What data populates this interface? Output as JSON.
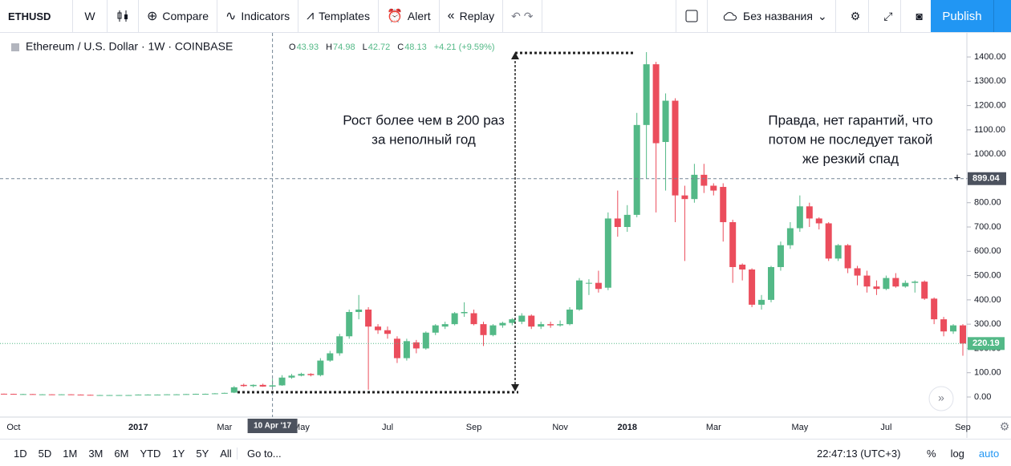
{
  "toolbar": {
    "symbol": "ETHUSD",
    "interval": "W",
    "items": [
      "Compare",
      "Indicators",
      "Templates",
      "Alert",
      "Replay"
    ],
    "layout_name": "Без названия",
    "publish": "Publish"
  },
  "chart_data": {
    "type": "candlestick",
    "header": {
      "title": "Ethereum / U.S. Dollar · 1W · COINBASE",
      "ohlc": [
        {
          "label": "O",
          "value": "43.93"
        },
        {
          "label": "H",
          "value": "74.98"
        },
        {
          "label": "L",
          "value": "42.72"
        },
        {
          "label": "C",
          "value": "48.13"
        }
      ],
      "change": "+4.21 (+9.59%)"
    },
    "annotations": [
      {
        "lines": [
          "Рост более чем в 200 раз",
          "за неполный год"
        ]
      },
      {
        "lines": [
          "Правда, нет гарантий, что",
          "потом не последует такой",
          "же резкий спад"
        ]
      }
    ],
    "up_color": "#53b987",
    "down_color": "#eb4d5c",
    "categories": [
      null,
      "Oct",
      null,
      null,
      null,
      null,
      null,
      null,
      null,
      null,
      null,
      null,
      null,
      null,
      "2017",
      null,
      null,
      null,
      null,
      null,
      null,
      null,
      null,
      "Mar",
      null,
      null,
      null,
      null,
      null,
      null,
      null,
      "May",
      null,
      null,
      null,
      null,
      null,
      null,
      null,
      null,
      "Jul",
      null,
      null,
      null,
      null,
      null,
      null,
      null,
      null,
      "Sep",
      null,
      null,
      null,
      null,
      null,
      null,
      null,
      null,
      "Nov",
      null,
      null,
      null,
      null,
      null,
      null,
      "2018",
      null,
      null,
      null,
      null,
      null,
      null,
      null,
      null,
      "Mar",
      null,
      null,
      null,
      null,
      null,
      null,
      null,
      null,
      "May",
      null,
      null,
      null,
      null,
      null,
      null,
      null,
      null,
      "Jul",
      null,
      null,
      null,
      null,
      null,
      null,
      null,
      "Sep"
    ],
    "open": [
      13.5,
      13,
      12,
      12,
      11,
      11,
      10,
      11,
      10,
      9,
      8,
      8,
      8,
      8,
      8,
      10,
      10,
      10,
      11,
      11,
      12,
      13,
      13,
      15,
      18,
      50,
      45,
      50,
      43,
      48,
      80,
      88,
      95,
      90,
      150,
      180,
      250,
      350,
      360,
      290,
      275,
      240,
      160,
      225,
      200,
      265,
      290,
      300,
      345,
      345,
      300,
      255,
      295,
      305,
      310,
      335,
      290,
      300,
      295,
      300,
      360,
      470,
      470,
      450,
      735,
      700,
      750,
      1120,
      1370,
      1050,
      1220,
      830,
      815,
      915,
      870,
      865,
      720,
      545,
      525,
      380,
      400,
      535,
      625,
      695,
      785,
      735,
      715,
      570,
      625,
      530,
      500,
      455,
      445,
      490,
      455,
      470,
      475,
      405,
      320,
      270,
      295
    ],
    "high": [
      14,
      13.5,
      13,
      12.5,
      12,
      11.5,
      11.5,
      11.5,
      10.5,
      9.5,
      8.5,
      8.5,
      8.5,
      8.5,
      10.5,
      11,
      10.5,
      11.5,
      12,
      12.5,
      13.5,
      14,
      16,
      18,
      45,
      55,
      52,
      55,
      74.98,
      90,
      95,
      100,
      98,
      160,
      190,
      260,
      360,
      420,
      370,
      300,
      290,
      250,
      240,
      235,
      270,
      300,
      310,
      350,
      390,
      360,
      310,
      300,
      310,
      325,
      345,
      340,
      310,
      310,
      315,
      370,
      490,
      485,
      520,
      760,
      850,
      790,
      1170,
      1420,
      1380,
      1250,
      1230,
      870,
      960,
      960,
      880,
      880,
      730,
      550,
      530,
      420,
      540,
      640,
      720,
      830,
      800,
      740,
      720,
      630,
      630,
      540,
      520,
      480,
      500,
      510,
      480,
      480,
      480,
      410,
      330,
      300,
      300
    ],
    "low": [
      12.5,
      11.5,
      11.5,
      10.5,
      10.5,
      9.5,
      9.5,
      9.5,
      8.5,
      7.5,
      7.5,
      7.5,
      7.5,
      7.5,
      7.5,
      9.5,
      9.5,
      9.5,
      10.5,
      10.5,
      11.5,
      12.5,
      12.5,
      14.5,
      16,
      42,
      40,
      42,
      42.72,
      46,
      75,
      85,
      85,
      85,
      145,
      170,
      240,
      320,
      30,
      260,
      240,
      140,
      150,
      180,
      195,
      255,
      280,
      295,
      330,
      295,
      210,
      250,
      285,
      295,
      300,
      280,
      280,
      285,
      290,
      295,
      355,
      420,
      430,
      440,
      660,
      680,
      740,
      900,
      760,
      850,
      720,
      560,
      800,
      840,
      830,
      640,
      470,
      480,
      370,
      360,
      390,
      520,
      610,
      680,
      700,
      690,
      560,
      560,
      510,
      460,
      430,
      420,
      440,
      450,
      450,
      430,
      400,
      300,
      250,
      260,
      170
    ],
    "close": [
      13,
      12,
      12,
      11,
      11,
      10,
      11,
      10,
      9,
      8,
      8,
      8,
      8,
      8,
      10,
      10,
      10,
      11,
      11,
      12,
      13,
      13,
      15,
      17,
      40,
      45,
      50,
      43,
      48,
      80,
      88,
      95,
      90,
      150,
      180,
      250,
      350,
      360,
      290,
      275,
      260,
      160,
      230,
      200,
      265,
      295,
      300,
      345,
      350,
      300,
      255,
      295,
      305,
      320,
      335,
      290,
      300,
      295,
      300,
      360,
      480,
      470,
      445,
      735,
      700,
      750,
      1120,
      1370,
      1045,
      1220,
      830,
      815,
      915,
      870,
      850,
      720,
      535,
      525,
      380,
      400,
      535,
      625,
      695,
      785,
      735,
      715,
      570,
      625,
      530,
      500,
      455,
      445,
      490,
      455,
      470,
      475,
      405,
      320,
      270,
      295,
      220.19
    ],
    "ylim": [
      -76,
      1486
    ],
    "yticks": [
      {
        "value": 0,
        "label": "0.00"
      },
      {
        "value": 100,
        "label": "100.00"
      },
      {
        "value": 200,
        "label": "200.00"
      },
      {
        "value": 300,
        "label": "300.00"
      },
      {
        "value": 400,
        "label": "400.00"
      },
      {
        "value": 500,
        "label": "500.00"
      },
      {
        "value": 600,
        "label": "600.00"
      },
      {
        "value": 700,
        "label": "700.00"
      },
      {
        "value": 800,
        "label": "800.00"
      },
      {
        "value": 900,
        "label": "900.00"
      },
      {
        "value": 1000,
        "label": "1000.00"
      },
      {
        "value": 1100,
        "label": "1100.00"
      },
      {
        "value": 1200,
        "label": "1200.00"
      },
      {
        "value": 1300,
        "label": "1300.00"
      },
      {
        "value": 1400,
        "label": "1400.00"
      }
    ],
    "grid": false,
    "crosshair": {
      "date_label": "10 Apr '17",
      "price": 899.04
    }
  },
  "bottom_bar": {
    "ranges": [
      "1D",
      "5D",
      "1M",
      "3M",
      "6M",
      "YTD",
      "1Y",
      "5Y",
      "All"
    ],
    "goto": "Go to...",
    "clock": "22:47:13 (UTC+3)",
    "options": [
      "%",
      "log",
      "auto"
    ]
  }
}
